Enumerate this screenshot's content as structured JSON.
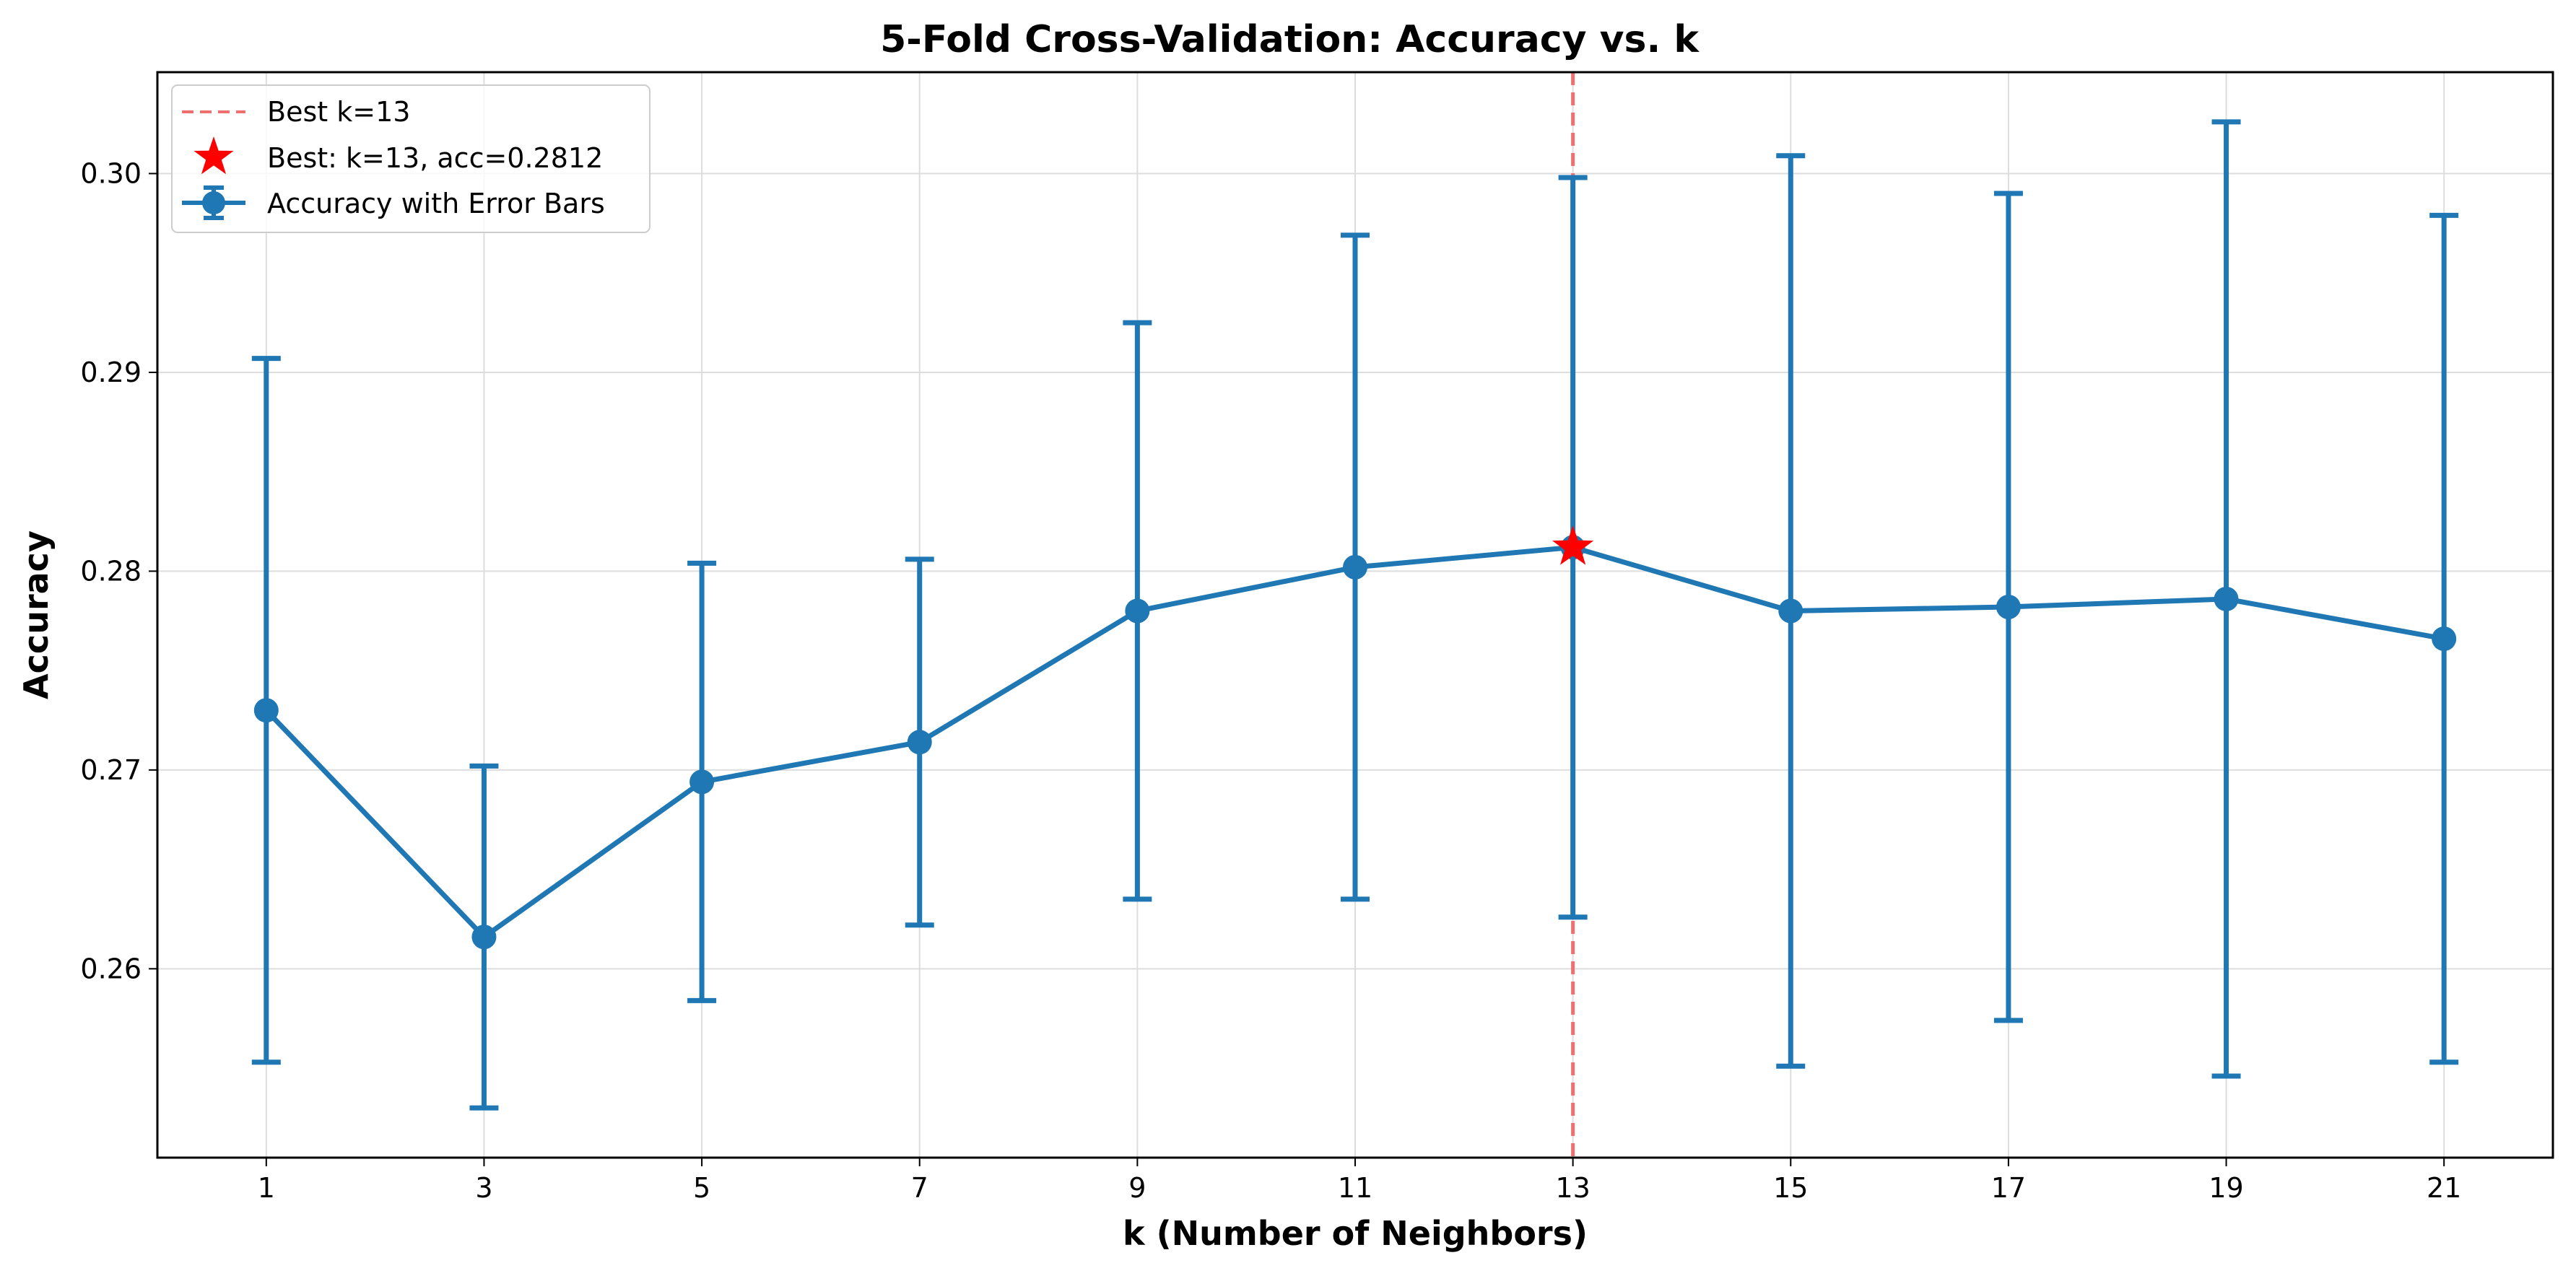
{
  "chart_data": {
    "type": "line",
    "title": "5-Fold Cross-Validation: Accuracy vs. k",
    "xlabel": "k (Number of Neighbors)",
    "ylabel": "Accuracy",
    "x": [
      1,
      3,
      5,
      7,
      9,
      11,
      13,
      15,
      17,
      19,
      21
    ],
    "x_ticks": [
      "1",
      "3",
      "5",
      "7",
      "9",
      "11",
      "13",
      "15",
      "17",
      "19",
      "21"
    ],
    "y_ticks": [
      "0.26",
      "0.27",
      "0.28",
      "0.29",
      "0.30"
    ],
    "xlim": [
      0,
      22
    ],
    "ylim": [
      0.2505,
      0.3051
    ],
    "grid": true,
    "legend_position": "upper-left",
    "series": [
      {
        "name": "Accuracy with Error Bars",
        "values": [
          0.273,
          0.2616,
          0.2694,
          0.2714,
          0.278,
          0.2802,
          0.2812,
          0.278,
          0.2782,
          0.2786,
          0.2766
        ],
        "error": [
          0.0177,
          0.0086,
          0.011,
          0.0092,
          0.0145,
          0.0167,
          0.0186,
          0.0229,
          0.0208,
          0.024,
          0.0213
        ],
        "color": "#1f77b4"
      }
    ],
    "best": {
      "k": 13,
      "accuracy": 0.2812,
      "marker_label": "Best: k=13, acc=0.2812",
      "line_label": "Best k=13",
      "marker_color": "#ff0000",
      "line_color": "#f07070"
    }
  }
}
